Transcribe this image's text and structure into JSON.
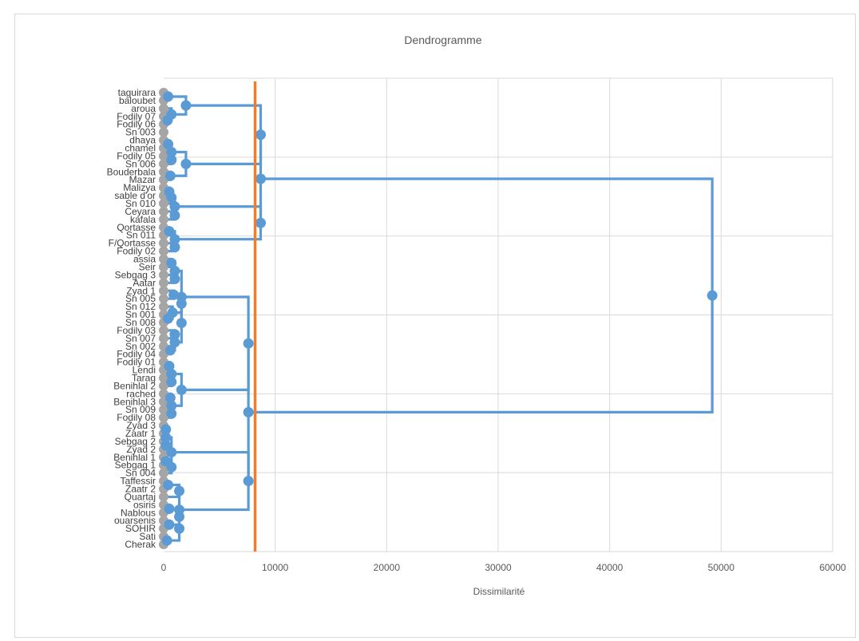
{
  "chart_data": {
    "type": "dendrogram",
    "title": "Dendrogramme",
    "xlabel": "Dissimilarité",
    "ylabel": "",
    "xlim": [
      0,
      60000
    ],
    "xticks": [
      0,
      10000,
      20000,
      30000,
      40000,
      50000,
      60000
    ],
    "grid": true,
    "orientation": "horizontal",
    "colors": {
      "tree": "#5b9bd5",
      "cutoff": "#ed7d31",
      "leaf_marker": "#a5a5a5",
      "grid": "#d9d9d9",
      "text": "#595959"
    },
    "leaves": [
      "taguirara",
      "baloubet",
      "aroua",
      "Fodily 07",
      "Fodily 06",
      "Sn 003",
      "dhaya",
      "chamel",
      "Fodily 05",
      "Sn 006",
      "Bouderbala",
      "Mazar",
      "Malizya",
      "sable d'or",
      "Sn 010",
      "Ceyara",
      "kafala",
      "Qortasse",
      "Sn 011",
      "F/Qortasse",
      "Fodily 02",
      "assia",
      "Seir",
      "Sebgag 3",
      "Aatar",
      "Zyad 1",
      "Sn 005",
      "Sn 012",
      "Sn 001",
      "Sn 008",
      "Fodily 03",
      "Sn 007",
      "Sn 002",
      "Fodily 04",
      "Fodily 01",
      "Lendi",
      "Tarag",
      "Benihlal 2",
      "rached",
      "Benihlal 3",
      "Sn 009",
      "Fodily 08",
      "Zyad 3",
      "Zaatr 1",
      "Sebgag 2",
      "Zyad 2",
      "Benihlal 1",
      "Sebgag 1",
      "Sn 004",
      "Taffessir",
      "Zaatr 2",
      "Quartaj",
      "osiris",
      "Nablous",
      "ouarsenis",
      "SOHIR",
      "Sati",
      "Cherak"
    ],
    "merges": [
      {
        "a": 0,
        "b": 1,
        "height": 400
      },
      {
        "a": 3,
        "b": 4,
        "height": 350
      },
      {
        "a": 2,
        "b": "m1",
        "height": 700
      },
      {
        "a": "m0",
        "b": "m2",
        "height": 2000
      },
      {
        "a": 6,
        "b": 7,
        "height": 400
      },
      {
        "a": 8,
        "b": 9,
        "height": 700
      },
      {
        "a": 10,
        "b": 11,
        "height": 600
      },
      {
        "a": "m4",
        "b": "m5",
        "height": 700
      },
      {
        "a": "m7",
        "b": "m6",
        "height": 2000
      },
      {
        "a": "m3",
        "b": "m8",
        "height": 8700
      },
      {
        "a": 12,
        "b": 13,
        "height": 500
      },
      {
        "a": "m10",
        "b": 14,
        "height": 700
      },
      {
        "a": 15,
        "b": 16,
        "height": 1000
      },
      {
        "a": "m11",
        "b": "m12",
        "height": 1000
      },
      {
        "a": 17,
        "b": 18,
        "height": 500
      },
      {
        "a": 19,
        "b": 20,
        "height": 1000
      },
      {
        "a": "m14",
        "b": "m15",
        "height": 1000
      },
      {
        "a": "m13",
        "b": "m16",
        "height": 8700
      },
      {
        "a": "m9",
        "b": "m17",
        "height": 8700
      },
      {
        "a": 21,
        "b": 22,
        "height": 700
      },
      {
        "a": 23,
        "b": 24,
        "height": 1000
      },
      {
        "a": "m19",
        "b": "m20",
        "height": 1000
      },
      {
        "a": 25,
        "b": 26,
        "height": 900
      },
      {
        "a": 28,
        "b": 29,
        "height": 400
      },
      {
        "a": 27,
        "b": "m23",
        "height": 800
      },
      {
        "a": "m22",
        "b": "m24",
        "height": 1600
      },
      {
        "a": 30,
        "b": 31,
        "height": 1000
      },
      {
        "a": 32,
        "b": 33,
        "height": 600
      },
      {
        "a": "m26",
        "b": "m27",
        "height": 1000
      },
      {
        "a": "m25",
        "b": "m28",
        "height": 1600
      },
      {
        "a": "m21",
        "b": "m29",
        "height": 1600
      },
      {
        "a": 34,
        "b": 35,
        "height": 500
      },
      {
        "a": 36,
        "b": 37,
        "height": 700
      },
      {
        "a": "m31",
        "b": "m32",
        "height": 700
      },
      {
        "a": 38,
        "b": 39,
        "height": 600
      },
      {
        "a": 40,
        "b": 41,
        "height": 700
      },
      {
        "a": "m34",
        "b": "m35",
        "height": 700
      },
      {
        "a": "m33",
        "b": "m36",
        "height": 1600
      },
      {
        "a": "m30",
        "b": "m37",
        "height": 7600
      },
      {
        "a": 42,
        "b": 43,
        "height": 200
      },
      {
        "a": 44,
        "b": 45,
        "height": 200
      },
      {
        "a": "m39",
        "b": "m40",
        "height": 200
      },
      {
        "a": 46,
        "b": 47,
        "height": 200
      },
      {
        "a": "m42",
        "b": 48,
        "height": 700
      },
      {
        "a": "m41",
        "b": "m43",
        "height": 700
      },
      {
        "a": 49,
        "b": 50,
        "height": 400
      },
      {
        "a": "m45",
        "b": 51,
        "height": 1400
      },
      {
        "a": 52,
        "b": 53,
        "height": 500
      },
      {
        "a": 54,
        "b": 55,
        "height": 500
      },
      {
        "a": "m47",
        "b": "m48",
        "height": 1400
      },
      {
        "a": 56,
        "b": 57,
        "height": 300
      },
      {
        "a": "m49",
        "b": "m50",
        "height": 1400
      },
      {
        "a": "m46",
        "b": "m51",
        "height": 1400
      },
      {
        "a": "m44",
        "b": "m52",
        "height": 7600
      },
      {
        "a": "m38",
        "b": "m53",
        "height": 7600
      },
      {
        "a": "m18",
        "b": "m54",
        "height": 49200
      }
    ],
    "cutoff_line": 8200
  }
}
